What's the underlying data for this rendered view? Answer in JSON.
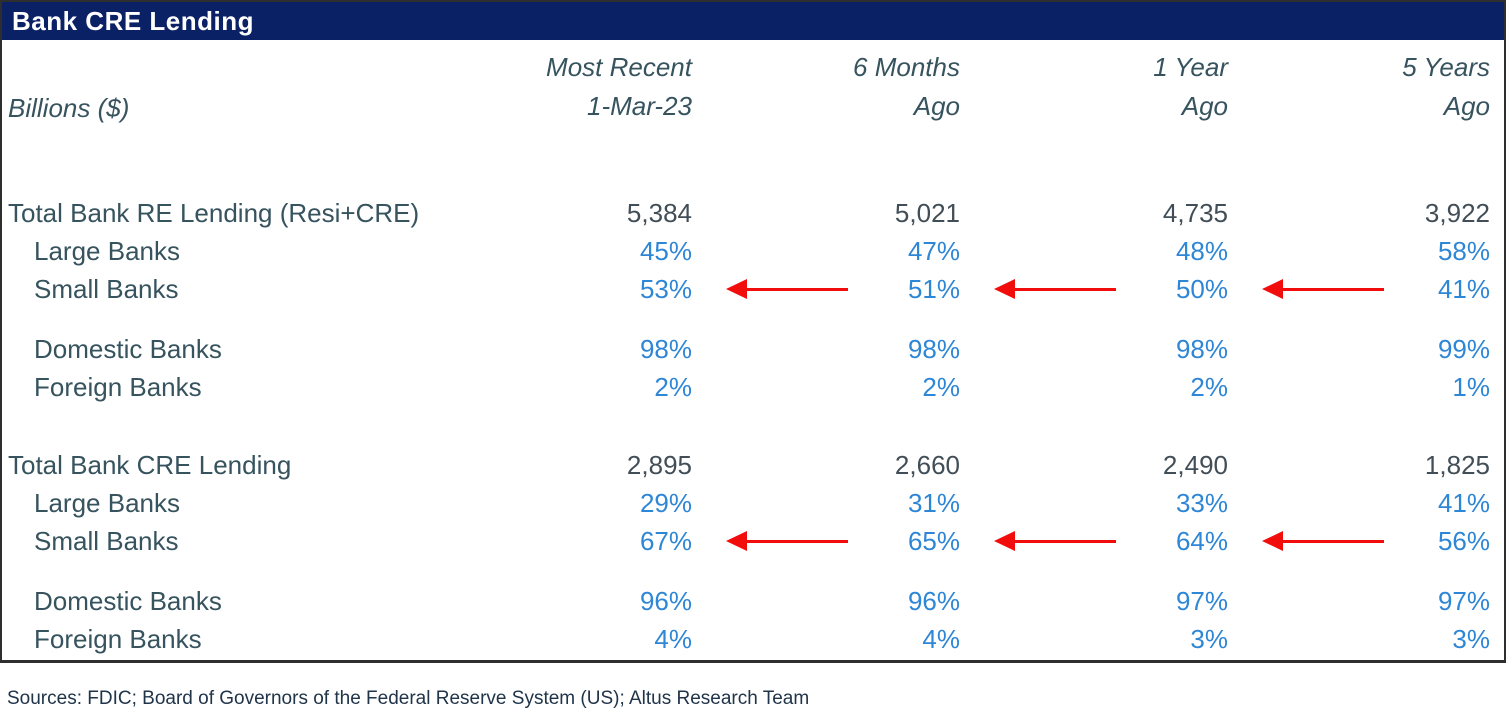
{
  "title": "Bank CRE Lending",
  "unit_label": "Billions ($)",
  "source_note": "Sources: FDIC; Board of Governors of the Federal Reserve System (US); Altus Research Team",
  "colors": {
    "header_bg": "#0a2166",
    "header_text": "#ffffff",
    "label_text": "#36535e",
    "number_text": "#414e57",
    "percent_text": "#2e86d6",
    "arrow": "#f20d0d",
    "source_text": "#20344a",
    "border": "#2e2e2e"
  },
  "chart_data": {
    "type": "table",
    "title": "Bank CRE Lending",
    "unit": "Billions ($)",
    "column_headers": [
      {
        "line1": "Most Recent",
        "line2": "1-Mar-23"
      },
      {
        "line1": "6 Months",
        "line2": "Ago"
      },
      {
        "line1": "1 Year",
        "line2": "Ago"
      },
      {
        "line1": "5 Years",
        "line2": "Ago"
      }
    ],
    "groups": [
      {
        "rows": [
          {
            "label": "Total Bank RE Lending (Resi+CRE)",
            "indent": false,
            "style": "number",
            "arrows": false,
            "values": [
              "5,384",
              "5,021",
              "4,735",
              "3,922"
            ]
          },
          {
            "label": "Large Banks",
            "indent": true,
            "style": "percent",
            "arrows": false,
            "values": [
              "45%",
              "47%",
              "48%",
              "58%"
            ]
          },
          {
            "label": "Small Banks",
            "indent": true,
            "style": "percent",
            "arrows": true,
            "values": [
              "53%",
              "51%",
              "50%",
              "41%"
            ]
          }
        ]
      },
      {
        "rows": [
          {
            "label": "Domestic Banks",
            "indent": true,
            "style": "percent",
            "arrows": false,
            "values": [
              "98%",
              "98%",
              "98%",
              "99%"
            ]
          },
          {
            "label": "Foreign Banks",
            "indent": true,
            "style": "percent",
            "arrows": false,
            "values": [
              "2%",
              "2%",
              "2%",
              "1%"
            ]
          }
        ]
      },
      {
        "rows": [
          {
            "label": "Total Bank CRE Lending",
            "indent": false,
            "style": "number",
            "arrows": false,
            "values": [
              "2,895",
              "2,660",
              "2,490",
              "1,825"
            ]
          },
          {
            "label": "Large Banks",
            "indent": true,
            "style": "percent",
            "arrows": false,
            "values": [
              "29%",
              "31%",
              "33%",
              "41%"
            ]
          },
          {
            "label": "Small Banks",
            "indent": true,
            "style": "percent",
            "arrows": true,
            "values": [
              "67%",
              "65%",
              "64%",
              "56%"
            ]
          }
        ]
      },
      {
        "rows": [
          {
            "label": "Domestic Banks",
            "indent": true,
            "style": "percent",
            "arrows": false,
            "values": [
              "96%",
              "96%",
              "97%",
              "97%"
            ]
          },
          {
            "label": "Foreign Banks",
            "indent": true,
            "style": "percent",
            "arrows": false,
            "values": [
              "4%",
              "4%",
              "3%",
              "3%"
            ]
          }
        ]
      }
    ]
  }
}
